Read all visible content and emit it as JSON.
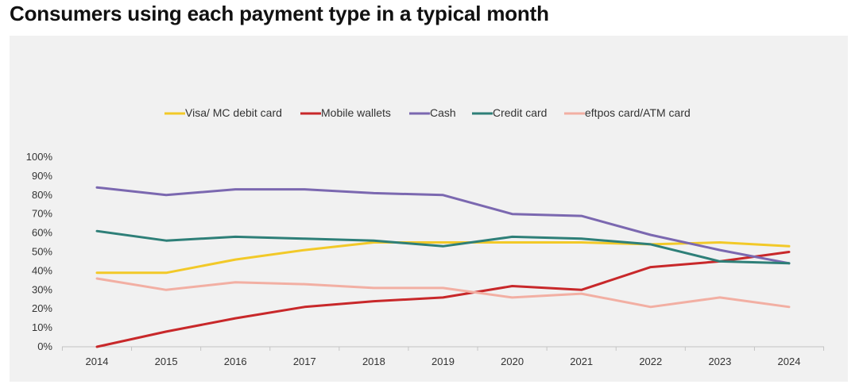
{
  "title": "Consumers using each payment type in a typical month",
  "chart_data": {
    "type": "line",
    "title": "Consumers using each payment type in a typical month",
    "x": [
      "2014",
      "2015",
      "2016",
      "2017",
      "2018",
      "2019",
      "2020",
      "2021",
      "2022",
      "2023",
      "2024"
    ],
    "ylim": [
      0,
      100
    ],
    "y_ticks": [
      "0%",
      "10%",
      "20%",
      "30%",
      "40%",
      "50%",
      "60%",
      "70%",
      "80%",
      "90%",
      "100%"
    ],
    "grid": false,
    "legend_position": "top",
    "series": [
      {
        "name": "Visa/ MC debit card",
        "color": "#F2C928",
        "values": [
          39,
          39,
          46,
          51,
          55,
          55,
          55,
          55,
          54,
          55,
          53
        ]
      },
      {
        "name": "Mobile wallets",
        "color": "#C8282A",
        "values": [
          0,
          8,
          15,
          21,
          24,
          26,
          32,
          30,
          42,
          45,
          50
        ]
      },
      {
        "name": "Cash",
        "color": "#7B68B0",
        "values": [
          84,
          80,
          83,
          83,
          81,
          80,
          70,
          69,
          59,
          51,
          44
        ]
      },
      {
        "name": "Credit card",
        "color": "#2E7F78",
        "values": [
          61,
          56,
          58,
          57,
          56,
          53,
          58,
          57,
          54,
          45,
          44
        ]
      },
      {
        "name": "eftpos card/ATM card",
        "color": "#F2AFA3",
        "values": [
          36,
          30,
          34,
          33,
          31,
          31,
          26,
          28,
          21,
          26,
          21
        ]
      }
    ]
  }
}
